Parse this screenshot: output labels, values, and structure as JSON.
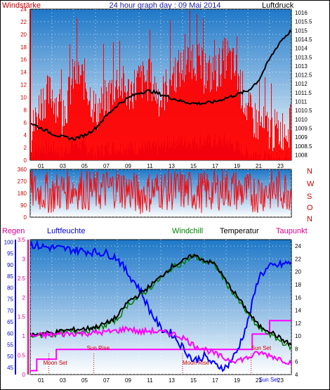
{
  "chart_data": [
    {
      "type": "line",
      "title": "24 hour graph day : 09 Mai 2014",
      "left_label": "Windstärke",
      "right_label": "Luftdruck",
      "x_tick_labels": [
        "01",
        "03",
        "05",
        "07",
        "09",
        "11",
        "13",
        "15",
        "17",
        "19",
        "21",
        "23"
      ],
      "x_range": [
        0,
        24
      ],
      "left_ticks": [
        "0",
        "2",
        "4",
        "6",
        "8",
        "10",
        "12",
        "14",
        "16",
        "18",
        "20",
        "22",
        "24"
      ],
      "left_range": [
        0,
        24
      ],
      "right_ticks": [
        "1008",
        "1008.5",
        "1009",
        "1009.5",
        "1010",
        "1010.5",
        "1011",
        "1011.5",
        "1012",
        "1012.5",
        "1013",
        "1013.5",
        "1014",
        "1014.5",
        "1015",
        "1015.5",
        "1016"
      ],
      "right_range": [
        1007.7,
        1016.2
      ],
      "grid": true,
      "colors": {
        "gust": "#ff0000",
        "wind": "#0000ff",
        "pressure": "#000000",
        "bg_top": "#1e78c8",
        "bg_bottom": "#ffffff"
      },
      "series": [
        {
          "name": "Böen (gust)",
          "color": "#ff0000",
          "x": [
            0,
            1,
            2,
            3,
            4,
            5,
            6,
            7,
            8,
            9,
            10,
            11,
            12,
            13,
            14,
            15,
            16,
            17,
            18,
            19,
            20,
            21,
            22,
            23,
            24
          ],
          "values": [
            3,
            9,
            10,
            6,
            13,
            12,
            7,
            9,
            12,
            10,
            12,
            12,
            9,
            13,
            14,
            16,
            13,
            13,
            16,
            13,
            7,
            5,
            4,
            4,
            5
          ]
        },
        {
          "name": "Wind (mean)",
          "color": "#0000ff",
          "x": [
            0,
            1,
            2,
            3,
            4,
            5,
            6,
            7,
            8,
            9,
            10,
            11,
            12,
            13,
            14,
            15,
            16,
            17,
            18,
            19,
            20,
            21,
            22,
            23,
            24
          ],
          "values": [
            1,
            2,
            2,
            1,
            3,
            2,
            1,
            2,
            2,
            2,
            2,
            2,
            2,
            3,
            3,
            3,
            3,
            3,
            3,
            2,
            1,
            1,
            0,
            0,
            1
          ]
        },
        {
          "name": "Luftdruck",
          "axis": "right",
          "color": "#000000",
          "x": [
            0,
            1,
            2,
            3,
            4,
            5,
            6,
            7,
            8,
            9,
            10,
            11,
            12,
            13,
            14,
            15,
            16,
            17,
            18,
            19,
            20,
            21,
            22,
            23,
            24
          ],
          "values": [
            1009.8,
            1009.5,
            1009.2,
            1009.0,
            1008.9,
            1009.1,
            1009.5,
            1010.2,
            1010.8,
            1011.2,
            1011.5,
            1011.6,
            1011.4,
            1011.2,
            1011.0,
            1010.9,
            1010.9,
            1011.0,
            1011.2,
            1011.4,
            1011.6,
            1012.2,
            1013.4,
            1014.4,
            1015.0
          ]
        }
      ]
    },
    {
      "type": "scatter",
      "left_ticks": [
        "0",
        "90",
        "180",
        "270",
        "360"
      ],
      "left_range": [
        0,
        360
      ],
      "right_labels": [
        "N",
        "W",
        "S",
        "O",
        "N"
      ],
      "x_range": [
        0,
        24
      ],
      "grid": true,
      "series": [
        {
          "name": "Windrichtung",
          "color": "#ff0000",
          "x": [
            0,
            2,
            4,
            6,
            8,
            10,
            12,
            14,
            16,
            18,
            20,
            22,
            24
          ],
          "values": [
            200,
            180,
            220,
            190,
            230,
            170,
            210,
            200,
            190,
            220,
            180,
            200,
            210
          ],
          "spread": 160
        }
      ]
    },
    {
      "type": "line",
      "labels": {
        "regen": "Regen",
        "luftfeuchte": "Luftfeuchte",
        "windchill": "Windchill",
        "temperatur": "Temperatur",
        "taupunkt": "Taupunkt"
      },
      "x_tick_labels": [
        "01",
        "03",
        "05",
        "07",
        "09",
        "11",
        "13",
        "15",
        "17",
        "19",
        "21",
        "23"
      ],
      "x_range": [
        0,
        24
      ],
      "regen_ticks": [
        "0",
        "0.5",
        "1",
        "1.5",
        "2",
        "2.5",
        "3",
        "3.5"
      ],
      "regen_range": [
        0,
        3.5
      ],
      "humidity_ticks": [
        "45",
        "50",
        "55",
        "60",
        "65",
        "70",
        "75",
        "80",
        "85",
        "90",
        "95",
        "100"
      ],
      "humidity_range": [
        42,
        101
      ],
      "temp_ticks": [
        "4",
        "6",
        "8",
        "10",
        "12",
        "14",
        "16",
        "18",
        "20",
        "22",
        "24"
      ],
      "temp_range": [
        4,
        25
      ],
      "grid": true,
      "annotations": [
        {
          "text": "Moon Set",
          "x": 1.2,
          "color": "#cc0000"
        },
        {
          "text": "Sun Rise",
          "x": 5.2,
          "color": "#cc0000"
        },
        {
          "text": "Moon Rise",
          "x": 14.0,
          "color": "#cc0000"
        },
        {
          "text": "Sun Set",
          "x": 20.3,
          "color": "#cc0000"
        },
        {
          "text": "Sun Set",
          "x": 21.0,
          "color": "#0000ff"
        }
      ],
      "series": [
        {
          "name": "Regen",
          "axis": "regen",
          "color": "#ff00ff",
          "x": [
            0,
            0.6,
            0.6,
            2.4,
            2.4,
            20.4,
            20.4,
            22.0,
            22.0,
            24
          ],
          "values": [
            0.1,
            0.1,
            0.4,
            0.4,
            0.65,
            0.65,
            1.05,
            1.05,
            1.4,
            1.4
          ]
        },
        {
          "name": "Luftfeuchte",
          "axis": "humidity",
          "color": "#0000ff",
          "x": [
            0,
            1,
            3,
            5,
            7,
            8,
            9,
            10,
            11,
            12,
            13,
            14,
            15,
            16,
            17,
            18,
            19,
            20,
            21,
            22,
            23,
            24
          ],
          "values": [
            99,
            98,
            97,
            96,
            95,
            93,
            86,
            80,
            70,
            62,
            60,
            54,
            48,
            50,
            46,
            45,
            52,
            65,
            85,
            89,
            90,
            91
          ]
        },
        {
          "name": "Temperatur",
          "axis": "temp",
          "color": "#000000",
          "x": [
            0,
            1,
            2,
            3,
            4,
            5,
            6,
            7,
            8,
            9,
            10,
            11,
            12,
            13,
            14,
            15,
            16,
            17,
            18,
            19,
            20,
            21,
            22,
            23,
            24
          ],
          "values": [
            10.2,
            10.4,
            10.5,
            10.8,
            11.0,
            11.1,
            11.4,
            12.0,
            13.0,
            15.4,
            16.4,
            17.8,
            19.2,
            20.8,
            21.6,
            22.6,
            21.8,
            21.2,
            18.5,
            16.2,
            13.8,
            11.6,
            10.8,
            9.6,
            8.6
          ]
        },
        {
          "name": "Windchill",
          "axis": "temp",
          "color": "#008000",
          "x": [
            0,
            1,
            2,
            3,
            4,
            5,
            6,
            7,
            8,
            9,
            10,
            11,
            12,
            13,
            14,
            15,
            16,
            17,
            18,
            19,
            20,
            21,
            22,
            23,
            24
          ],
          "values": [
            10.0,
            10.1,
            10.2,
            10.5,
            10.7,
            10.8,
            11.0,
            11.7,
            12.6,
            15.0,
            16.0,
            17.5,
            19.0,
            20.6,
            21.4,
            22.4,
            21.6,
            21.0,
            18.3,
            15.8,
            13.4,
            11.2,
            10.3,
            9.2,
            8.2
          ]
        },
        {
          "name": "Taupunkt",
          "axis": "temp",
          "color": "#ff00ff",
          "x": [
            0,
            1,
            2,
            3,
            4,
            5,
            6,
            7,
            8,
            9,
            10,
            11,
            12,
            13,
            14,
            15,
            16,
            17,
            18,
            19,
            20,
            21,
            22,
            23,
            24
          ],
          "values": [
            10.0,
            10.1,
            10.2,
            10.3,
            10.4,
            10.4,
            10.5,
            10.6,
            10.8,
            11.2,
            10.6,
            10.8,
            10.6,
            10.4,
            9.8,
            8.6,
            8.0,
            7.2,
            6.4,
            6.2,
            6.6,
            7.4,
            7.0,
            6.4,
            5.8
          ]
        }
      ]
    }
  ]
}
